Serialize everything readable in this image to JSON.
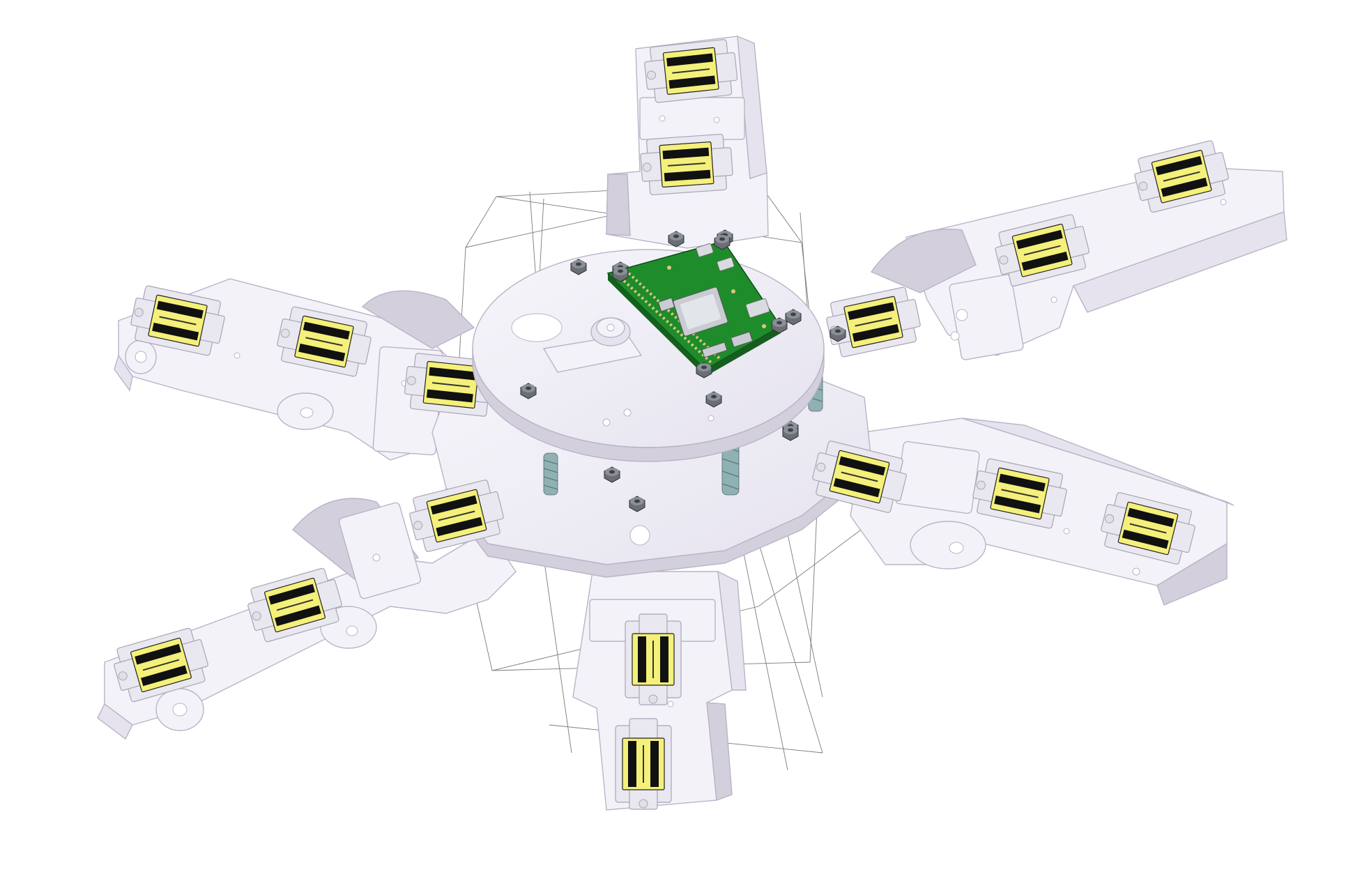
{
  "scene": {
    "background": "#ffffff",
    "subject": "hexapod-robot-cad-assembly",
    "colors": {
      "plastic": "#f4f2f9",
      "plastic_shadow": "#d3cfdd",
      "outline": "#b9b4c6",
      "servo_label": "#f4f07a",
      "servo_band": "#111111",
      "pcb": "#1f8c2b",
      "spring": "#8fb1b3",
      "nut": "#6b6e75",
      "wire": "#7a7a7a"
    },
    "icons": {
      "body": "hexapod-body-icon",
      "controller": "controller-board-icon",
      "servo": "servo-motor-icon",
      "leg": "robot-leg-icon"
    }
  }
}
